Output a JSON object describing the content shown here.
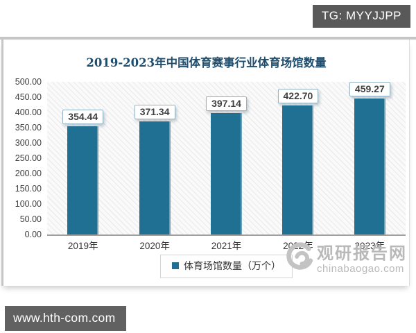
{
  "badge": {
    "text": "TG: MYYJJPP"
  },
  "footer": {
    "url": "www.hth-com.com"
  },
  "watermark": {
    "site_name": "观研报告网",
    "site_url": "chinabaogao.com",
    "color": "#b9b9b9"
  },
  "chart_data": {
    "type": "bar",
    "title": "2019-2023年中国体育赛事行业体育场馆数量",
    "title_color": "#1f4e6e",
    "categories": [
      "2019年",
      "2020年",
      "2021年",
      "2022年",
      "2023年"
    ],
    "values": [
      354.44,
      371.34,
      397.14,
      422.7,
      459.27
    ],
    "value_labels": [
      "354.44",
      "371.34",
      "397.14",
      "422.70",
      "459.27"
    ],
    "series_name": "体育场馆数量（万个）",
    "legend": [
      "体育场馆数量（万个）"
    ],
    "legend_position": "bottom",
    "xlabel": "",
    "ylabel": "",
    "ylim": [
      0,
      500
    ],
    "y_ticks": [
      "500.00",
      "450.00",
      "400.00",
      "350.00",
      "300.00",
      "250.00",
      "200.00",
      "150.00",
      "100.00",
      "50.00",
      "0.00"
    ],
    "grid": false,
    "bar_color": "#1f7092",
    "plot_background": "hatched-diagonal"
  }
}
